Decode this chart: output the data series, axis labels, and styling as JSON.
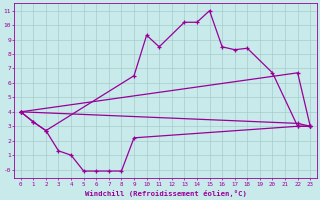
{
  "series": {
    "max": {
      "x": [
        0,
        1,
        2,
        9,
        10,
        11,
        13,
        14,
        15,
        16,
        17,
        18,
        20,
        22,
        23
      ],
      "y": [
        4.0,
        3.3,
        2.7,
        6.5,
        9.3,
        8.5,
        10.2,
        10.2,
        11.0,
        8.5,
        8.3,
        8.4,
        6.7,
        3.0,
        3.0
      ]
    },
    "min": {
      "x": [
        0,
        1,
        2,
        3,
        4,
        5,
        6,
        7,
        8,
        9,
        22,
        23
      ],
      "y": [
        4.0,
        3.3,
        2.7,
        1.3,
        1.0,
        -0.1,
        -0.1,
        -0.1,
        -0.1,
        2.2,
        3.0,
        3.0
      ]
    },
    "avg_upper": {
      "x": [
        0,
        22,
        23
      ],
      "y": [
        4.0,
        6.7,
        3.0
      ]
    },
    "avg_lower": {
      "x": [
        0,
        22,
        23
      ],
      "y": [
        4.0,
        3.2,
        3.0
      ]
    }
  },
  "color": "#990099",
  "bg_color": "#c8eaea",
  "grid_color": "#a8cccc",
  "ylabel_vals": [
    0,
    1,
    2,
    3,
    4,
    5,
    6,
    7,
    8,
    9,
    10,
    11
  ],
  "ylabel_labels": [
    "-0",
    "1",
    "2",
    "3",
    "4",
    "5",
    "6",
    "7",
    "8",
    "9",
    "10",
    "11"
  ],
  "xlabel_vals": [
    0,
    1,
    2,
    3,
    4,
    5,
    6,
    7,
    8,
    9,
    10,
    11,
    12,
    13,
    14,
    15,
    16,
    17,
    18,
    19,
    20,
    21,
    22,
    23
  ],
  "xlabel": "Windchill (Refroidissement éolien,°C)",
  "xlim": [
    -0.5,
    23.5
  ],
  "ylim": [
    -0.6,
    11.5
  ]
}
